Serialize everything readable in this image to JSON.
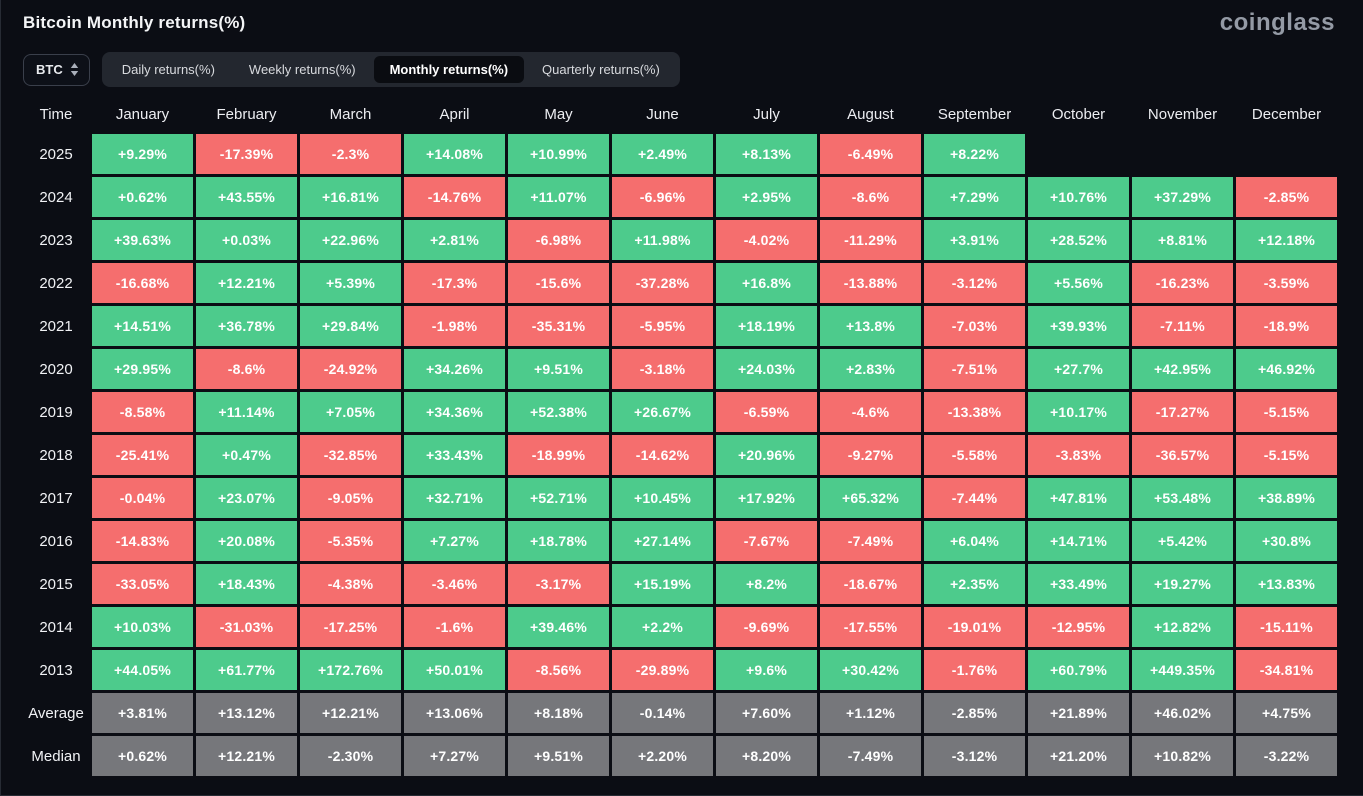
{
  "header": {
    "title": "Bitcoin Monthly returns(%)",
    "logo": "coinglass"
  },
  "toolbar": {
    "coin_selector": "BTC",
    "tabs": [
      {
        "label": "Daily returns(%)",
        "active": false
      },
      {
        "label": "Weekly returns(%)",
        "active": false
      },
      {
        "label": "Monthly returns(%)",
        "active": true
      },
      {
        "label": "Quarterly returns(%)",
        "active": false
      }
    ]
  },
  "colors": {
    "positive": "#4dcb8c",
    "negative": "#f56e6e",
    "summary": "#76777b"
  },
  "table": {
    "time_header": "Time",
    "months": [
      "January",
      "February",
      "March",
      "April",
      "May",
      "June",
      "July",
      "August",
      "September",
      "October",
      "November",
      "December"
    ],
    "rows": [
      {
        "label": "2025",
        "type": "year",
        "values": [
          "+9.29%",
          "-17.39%",
          "-2.3%",
          "+14.08%",
          "+10.99%",
          "+2.49%",
          "+8.13%",
          "-6.49%",
          "+8.22%",
          "",
          "",
          ""
        ]
      },
      {
        "label": "2024",
        "type": "year",
        "values": [
          "+0.62%",
          "+43.55%",
          "+16.81%",
          "-14.76%",
          "+11.07%",
          "-6.96%",
          "+2.95%",
          "-8.6%",
          "+7.29%",
          "+10.76%",
          "+37.29%",
          "-2.85%"
        ]
      },
      {
        "label": "2023",
        "type": "year",
        "values": [
          "+39.63%",
          "+0.03%",
          "+22.96%",
          "+2.81%",
          "-6.98%",
          "+11.98%",
          "-4.02%",
          "-11.29%",
          "+3.91%",
          "+28.52%",
          "+8.81%",
          "+12.18%"
        ]
      },
      {
        "label": "2022",
        "type": "year",
        "values": [
          "-16.68%",
          "+12.21%",
          "+5.39%",
          "-17.3%",
          "-15.6%",
          "-37.28%",
          "+16.8%",
          "-13.88%",
          "-3.12%",
          "+5.56%",
          "-16.23%",
          "-3.59%"
        ]
      },
      {
        "label": "2021",
        "type": "year",
        "values": [
          "+14.51%",
          "+36.78%",
          "+29.84%",
          "-1.98%",
          "-35.31%",
          "-5.95%",
          "+18.19%",
          "+13.8%",
          "-7.03%",
          "+39.93%",
          "-7.11%",
          "-18.9%"
        ]
      },
      {
        "label": "2020",
        "type": "year",
        "values": [
          "+29.95%",
          "-8.6%",
          "-24.92%",
          "+34.26%",
          "+9.51%",
          "-3.18%",
          "+24.03%",
          "+2.83%",
          "-7.51%",
          "+27.7%",
          "+42.95%",
          "+46.92%"
        ]
      },
      {
        "label": "2019",
        "type": "year",
        "values": [
          "-8.58%",
          "+11.14%",
          "+7.05%",
          "+34.36%",
          "+52.38%",
          "+26.67%",
          "-6.59%",
          "-4.6%",
          "-13.38%",
          "+10.17%",
          "-17.27%",
          "-5.15%"
        ]
      },
      {
        "label": "2018",
        "type": "year",
        "values": [
          "-25.41%",
          "+0.47%",
          "-32.85%",
          "+33.43%",
          "-18.99%",
          "-14.62%",
          "+20.96%",
          "-9.27%",
          "-5.58%",
          "-3.83%",
          "-36.57%",
          "-5.15%"
        ]
      },
      {
        "label": "2017",
        "type": "year",
        "values": [
          "-0.04%",
          "+23.07%",
          "-9.05%",
          "+32.71%",
          "+52.71%",
          "+10.45%",
          "+17.92%",
          "+65.32%",
          "-7.44%",
          "+47.81%",
          "+53.48%",
          "+38.89%"
        ]
      },
      {
        "label": "2016",
        "type": "year",
        "values": [
          "-14.83%",
          "+20.08%",
          "-5.35%",
          "+7.27%",
          "+18.78%",
          "+27.14%",
          "-7.67%",
          "-7.49%",
          "+6.04%",
          "+14.71%",
          "+5.42%",
          "+30.8%"
        ]
      },
      {
        "label": "2015",
        "type": "year",
        "values": [
          "-33.05%",
          "+18.43%",
          "-4.38%",
          "-3.46%",
          "-3.17%",
          "+15.19%",
          "+8.2%",
          "-18.67%",
          "+2.35%",
          "+33.49%",
          "+19.27%",
          "+13.83%"
        ]
      },
      {
        "label": "2014",
        "type": "year",
        "values": [
          "+10.03%",
          "-31.03%",
          "-17.25%",
          "-1.6%",
          "+39.46%",
          "+2.2%",
          "-9.69%",
          "-17.55%",
          "-19.01%",
          "-12.95%",
          "+12.82%",
          "-15.11%"
        ]
      },
      {
        "label": "2013",
        "type": "year",
        "values": [
          "+44.05%",
          "+61.77%",
          "+172.76%",
          "+50.01%",
          "-8.56%",
          "-29.89%",
          "+9.6%",
          "+30.42%",
          "-1.76%",
          "+60.79%",
          "+449.35%",
          "-34.81%"
        ]
      },
      {
        "label": "Average",
        "type": "summary",
        "values": [
          "+3.81%",
          "+13.12%",
          "+12.21%",
          "+13.06%",
          "+8.18%",
          "-0.14%",
          "+7.60%",
          "+1.12%",
          "-2.85%",
          "+21.89%",
          "+46.02%",
          "+4.75%"
        ]
      },
      {
        "label": "Median",
        "type": "summary",
        "values": [
          "+0.62%",
          "+12.21%",
          "-2.30%",
          "+7.27%",
          "+9.51%",
          "+2.20%",
          "+8.20%",
          "-7.49%",
          "-3.12%",
          "+21.20%",
          "+10.82%",
          "-3.22%"
        ]
      }
    ]
  }
}
